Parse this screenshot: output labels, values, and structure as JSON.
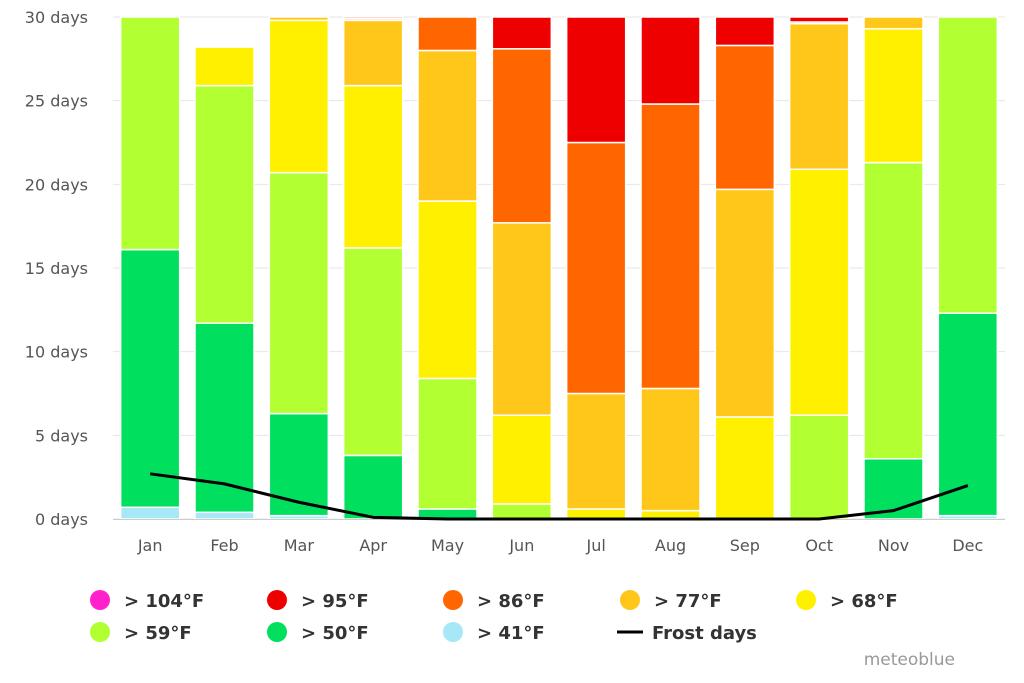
{
  "chart_data": {
    "type": "bar",
    "stacked": true,
    "title": "",
    "xlabel": "",
    "ylabel": "",
    "ylim": [
      0,
      30
    ],
    "y_ticks": [
      {
        "value": 0,
        "label": "0 days"
      },
      {
        "value": 5,
        "label": "5 days"
      },
      {
        "value": 10,
        "label": "10 days"
      },
      {
        "value": 15,
        "label": "15 days"
      },
      {
        "value": 20,
        "label": "20 days"
      },
      {
        "value": 25,
        "label": "25 days"
      },
      {
        "value": 30,
        "label": "30 days"
      }
    ],
    "categories": [
      "Jan",
      "Feb",
      "Mar",
      "Apr",
      "May",
      "Jun",
      "Jul",
      "Aug",
      "Sep",
      "Oct",
      "Nov",
      "Dec"
    ],
    "grid": "horizontal",
    "legend_position": "bottom",
    "series": [
      {
        "name": "> 41°F",
        "color": "#a6e8f5",
        "values": [
          0.7,
          0.4,
          0.2,
          0.0,
          0.0,
          0.0,
          0.0,
          0.0,
          0.0,
          0.0,
          0.0,
          0.2
        ]
      },
      {
        "name": "> 50°F",
        "color": "#00e05e",
        "values": [
          15.4,
          11.3,
          6.1,
          3.8,
          0.6,
          0.0,
          0.0,
          0.0,
          0.0,
          0.0,
          3.6,
          12.1
        ]
      },
      {
        "name": "> 59°F",
        "color": "#b2ff32",
        "values": [
          13.9,
          14.2,
          14.4,
          12.4,
          7.8,
          0.9,
          0.0,
          0.0,
          0.0,
          6.2,
          17.7,
          17.7
        ]
      },
      {
        "name": "> 68°F",
        "color": "#fff000",
        "values": [
          0.0,
          2.3,
          9.1,
          9.7,
          10.6,
          5.3,
          0.6,
          0.5,
          6.1,
          14.7,
          8.0,
          0.0
        ]
      },
      {
        "name": "> 77°F",
        "color": "#ffc71a",
        "values": [
          0.0,
          0.0,
          0.2,
          3.9,
          9.0,
          11.5,
          6.9,
          7.3,
          13.6,
          8.7,
          0.7,
          0.0
        ]
      },
      {
        "name": "> 86°F",
        "color": "#ff6600",
        "values": [
          0.0,
          0.0,
          0.0,
          0.1,
          2.0,
          10.4,
          15.0,
          17.0,
          8.6,
          0.1,
          0.0,
          0.0
        ]
      },
      {
        "name": "> 95°F",
        "color": "#ee0000",
        "values": [
          0.0,
          0.0,
          0.0,
          0.1,
          0.0,
          1.9,
          7.5,
          5.2,
          1.7,
          0.3,
          0.0,
          0.0
        ]
      },
      {
        "name": "> 104°F",
        "color": "#ff22cc",
        "values": [
          0,
          0,
          0,
          0,
          0,
          0,
          0,
          0,
          0,
          0,
          0,
          0
        ]
      }
    ],
    "frost_days": {
      "name": "Frost days",
      "color": "#000000",
      "values": [
        2.7,
        2.1,
        1.0,
        0.1,
        0.0,
        0.0,
        0.0,
        0.0,
        0.0,
        0.0,
        0.5,
        2.0
      ]
    },
    "legend": [
      {
        "label": "> 104°F",
        "color": "#ff22cc",
        "kind": "dot"
      },
      {
        "label": "> 95°F",
        "color": "#ee0000",
        "kind": "dot"
      },
      {
        "label": "> 86°F",
        "color": "#ff6600",
        "kind": "dot"
      },
      {
        "label": "> 77°F",
        "color": "#ffc71a",
        "kind": "dot"
      },
      {
        "label": "> 68°F",
        "color": "#fff000",
        "kind": "dot"
      },
      {
        "label": "> 59°F",
        "color": "#b2ff32",
        "kind": "dot"
      },
      {
        "label": "> 50°F",
        "color": "#00e05e",
        "kind": "dot"
      },
      {
        "label": "> 41°F",
        "color": "#a6e8f5",
        "kind": "dot"
      },
      {
        "label": "Frost days",
        "color": "#000000",
        "kind": "line"
      }
    ],
    "credit": "meteoblue"
  }
}
